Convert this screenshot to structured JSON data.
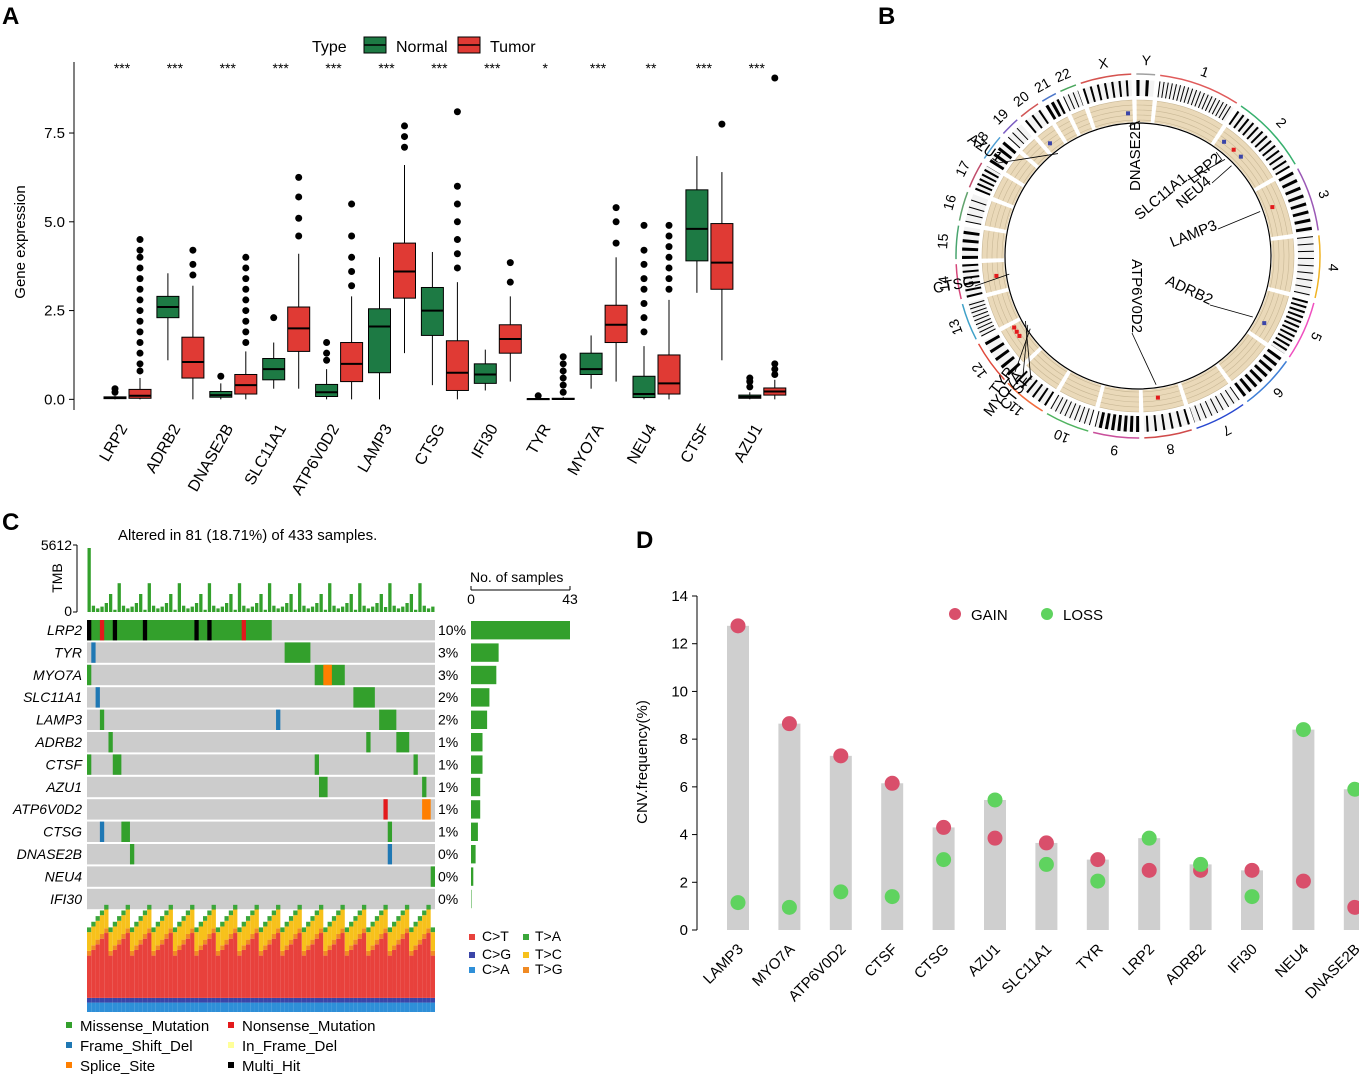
{
  "colors": {
    "normal": "#1d7a44",
    "tumor": "#e03a34",
    "missense": "#33a02c",
    "nonsense": "#e31a1c",
    "frameshift": "#1f78b4",
    "inframe": "#ffff99",
    "splice": "#ff7f00",
    "multihit": "#000000",
    "oncoBg": "#cccccc",
    "gain": "#d94f6b",
    "loss": "#5fd35f",
    "cnvBar": "#cfcfcf",
    "CtoT": "#e8413c",
    "CtoG": "#3b45a8",
    "CtoA": "#2e8fd8",
    "TtoA": "#3aa63a",
    "TtoC": "#f7c11b",
    "TtoG": "#f08a24",
    "circosBeige": "#ead9b9"
  },
  "panels": {
    "A": {
      "label": "A"
    },
    "B": {
      "label": "B"
    },
    "C": {
      "label": "C"
    },
    "D": {
      "label": "D"
    }
  },
  "chart_data": [
    {
      "id": "A",
      "type": "box",
      "title": "",
      "xlabel": "",
      "ylabel": "Gene expression",
      "ylim": [
        -0.3,
        9.5
      ],
      "yticks": [
        "0.0",
        "2.5",
        "5.0",
        "7.5"
      ],
      "legend": {
        "title": "Type",
        "entries": [
          "Normal",
          "Tumor"
        ],
        "position": "top-center"
      },
      "categories": [
        "LRP2",
        "ADRB2",
        "DNASE2B",
        "SLC11A1",
        "ATP6V0D2",
        "LAMP3",
        "CTSG",
        "IFI30",
        "TYR",
        "MYO7A",
        "NEU4",
        "CTSF",
        "AZU1"
      ],
      "significance": [
        "***",
        "***",
        "***",
        "***",
        "***",
        "***",
        "***",
        "***",
        "*",
        "***",
        "**",
        "***",
        "***"
      ],
      "series": [
        {
          "name": "Normal",
          "boxes": [
            {
              "min": 0.0,
              "q1": 0.02,
              "median": 0.04,
              "q3": 0.07,
              "max": 0.1,
              "outliers": [
                0.2,
                0.3
              ]
            },
            {
              "min": 1.1,
              "q1": 2.3,
              "median": 2.6,
              "q3": 2.9,
              "max": 3.55,
              "outliers": []
            },
            {
              "min": 0.0,
              "q1": 0.06,
              "median": 0.12,
              "q3": 0.22,
              "max": 0.45,
              "outliers": [
                0.65
              ]
            },
            {
              "min": 0.3,
              "q1": 0.55,
              "median": 0.85,
              "q3": 1.15,
              "max": 1.6,
              "outliers": [
                2.3
              ]
            },
            {
              "min": 0.0,
              "q1": 0.08,
              "median": 0.2,
              "q3": 0.42,
              "max": 0.85,
              "outliers": [
                1.1,
                1.3,
                1.6
              ]
            },
            {
              "min": 0.0,
              "q1": 0.75,
              "median": 2.05,
              "q3": 2.55,
              "max": 4.0,
              "outliers": []
            },
            {
              "min": 0.4,
              "q1": 1.8,
              "median": 2.5,
              "q3": 3.15,
              "max": 4.15,
              "outliers": []
            },
            {
              "min": 0.25,
              "q1": 0.45,
              "median": 0.7,
              "q3": 1.0,
              "max": 1.4,
              "outliers": []
            },
            {
              "min": 0.0,
              "q1": 0.0,
              "median": 0.01,
              "q3": 0.02,
              "max": 0.05,
              "outliers": [
                0.1
              ]
            },
            {
              "min": 0.3,
              "q1": 0.7,
              "median": 0.85,
              "q3": 1.3,
              "max": 1.8,
              "outliers": []
            },
            {
              "min": 0.0,
              "q1": 0.05,
              "median": 0.15,
              "q3": 0.65,
              "max": 1.5,
              "outliers": [
                1.9,
                2.3,
                2.7,
                3.1,
                3.4,
                3.8,
                4.2,
                4.9
              ]
            },
            {
              "min": 3.0,
              "q1": 3.9,
              "median": 4.8,
              "q3": 5.9,
              "max": 6.85,
              "outliers": []
            },
            {
              "min": 0.0,
              "q1": 0.03,
              "median": 0.07,
              "q3": 0.12,
              "max": 0.2,
              "outliers": [
                0.35,
                0.5,
                0.6
              ]
            }
          ]
        },
        {
          "name": "Tumor",
          "boxes": [
            {
              "min": 0.0,
              "q1": 0.03,
              "median": 0.1,
              "q3": 0.28,
              "max": 0.6,
              "outliers": [
                0.8,
                1.0,
                1.3,
                1.6,
                1.9,
                2.2,
                2.5,
                2.8,
                3.1,
                3.4,
                3.7,
                4.0,
                4.2,
                4.5
              ]
            },
            {
              "min": 0.0,
              "q1": 0.6,
              "median": 1.05,
              "q3": 1.75,
              "max": 3.2,
              "outliers": [
                3.5,
                3.8,
                4.2
              ]
            },
            {
              "min": 0.0,
              "q1": 0.15,
              "median": 0.4,
              "q3": 0.7,
              "max": 1.35,
              "outliers": [
                1.6,
                1.9,
                2.2,
                2.5,
                2.8,
                3.1,
                3.4,
                3.7,
                4.0
              ]
            },
            {
              "min": 0.3,
              "q1": 1.35,
              "median": 2.0,
              "q3": 2.6,
              "max": 4.1,
              "outliers": [
                4.6,
                5.1,
                5.7,
                6.25
              ]
            },
            {
              "min": 0.0,
              "q1": 0.5,
              "median": 1.0,
              "q3": 1.6,
              "max": 2.9,
              "outliers": [
                3.2,
                3.6,
                4.0,
                4.6,
                5.5
              ]
            },
            {
              "min": 1.3,
              "q1": 2.85,
              "median": 3.6,
              "q3": 4.4,
              "max": 6.6,
              "outliers": [
                7.1,
                7.4,
                7.7
              ]
            },
            {
              "min": 0.0,
              "q1": 0.25,
              "median": 0.75,
              "q3": 1.65,
              "max": 3.3,
              "outliers": [
                3.7,
                4.1,
                4.5,
                5.0,
                5.5,
                6.0,
                8.1
              ]
            },
            {
              "min": 0.5,
              "q1": 1.3,
              "median": 1.7,
              "q3": 2.1,
              "max": 2.9,
              "outliers": [
                3.3,
                3.85
              ]
            },
            {
              "min": 0.0,
              "q1": 0.0,
              "median": 0.01,
              "q3": 0.03,
              "max": 0.07,
              "outliers": [
                0.2,
                0.4,
                0.6,
                0.8,
                1.0,
                1.2
              ]
            },
            {
              "min": 0.5,
              "q1": 1.6,
              "median": 2.1,
              "q3": 2.65,
              "max": 4.0,
              "outliers": [
                4.4,
                5.0,
                5.4
              ]
            },
            {
              "min": 0.0,
              "q1": 0.15,
              "median": 0.45,
              "q3": 1.25,
              "max": 2.8,
              "outliers": [
                3.1,
                3.4,
                3.7,
                4.0,
                4.3,
                4.6,
                4.9
              ]
            },
            {
              "min": 1.1,
              "q1": 3.1,
              "median": 3.85,
              "q3": 4.95,
              "max": 6.4,
              "outliers": [
                7.75
              ]
            },
            {
              "min": 0.0,
              "q1": 0.12,
              "median": 0.22,
              "q3": 0.32,
              "max": 0.55,
              "outliers": [
                0.7,
                0.85,
                1.0,
                9.05
              ]
            }
          ]
        }
      ]
    },
    {
      "id": "B",
      "type": "circos",
      "chromosomes": [
        "1",
        "2",
        "3",
        "4",
        "5",
        "6",
        "7",
        "8",
        "9",
        "10",
        "11",
        "12",
        "13",
        "14",
        "15",
        "16",
        "17",
        "18",
        "19",
        "20",
        "21",
        "22",
        "X",
        "Y"
      ],
      "genes": [
        {
          "name": "DNASE2B",
          "chr": "1"
        },
        {
          "name": "LRP2",
          "chr": "2"
        },
        {
          "name": "SLC11A1",
          "chr": "2"
        },
        {
          "name": "NEU4",
          "chr": "2"
        },
        {
          "name": "LAMP3",
          "chr": "3"
        },
        {
          "name": "ADRB2",
          "chr": "5"
        },
        {
          "name": "ATP6V0D2",
          "chr": "8"
        },
        {
          "name": "TYR",
          "chr": "11"
        },
        {
          "name": "MYO7A",
          "chr": "11"
        },
        {
          "name": "CTSF",
          "chr": "11"
        },
        {
          "name": "CTSG",
          "chr": "14"
        },
        {
          "name": "AZU1",
          "chr": "19"
        }
      ]
    },
    {
      "id": "C",
      "type": "oncoplot",
      "title": "Altered in 81 (18.71%) of 433 samples.",
      "tmb_label": "TMB",
      "tmb_max": "5612",
      "tmb_min": "0",
      "side_title": "No. of samples",
      "side_min": "0",
      "side_max": "43",
      "genes": [
        "LRP2",
        "TYR",
        "MYO7A",
        "SLC11A1",
        "LAMP3",
        "ADRB2",
        "CTSF",
        "AZU1",
        "ATP6V0D2",
        "CTSG",
        "DNASE2B",
        "NEU4",
        "IFI30"
      ],
      "percents": [
        "10%",
        "3%",
        "3%",
        "2%",
        "2%",
        "1%",
        "1%",
        "1%",
        "1%",
        "1%",
        "0%",
        "0%",
        "0%"
      ],
      "counts": [
        43,
        12,
        11,
        8,
        7,
        5,
        5,
        4,
        4,
        3,
        2,
        1,
        0
      ],
      "titv_legend": [
        "C>T",
        "C>G",
        "C>A",
        "T>A",
        "T>C",
        "T>G"
      ],
      "variant_legend": [
        "Missense_Mutation",
        "Frame_Shift_Del",
        "Splice_Site",
        "Nonsense_Mutation",
        "In_Frame_Del",
        "Multi_Hit"
      ]
    },
    {
      "id": "D",
      "type": "dot-bar",
      "ylabel": "CNV.frequency(%)",
      "ylim": [
        0,
        14
      ],
      "yticks": [
        "0",
        "2",
        "4",
        "6",
        "8",
        "10",
        "12",
        "14"
      ],
      "legend": {
        "entries": [
          "GAIN",
          "LOSS"
        ],
        "position": "top-center"
      },
      "categories": [
        "LAMP3",
        "MYO7A",
        "ATP6V0D2",
        "CTSF",
        "CTSG",
        "AZU1",
        "SLC11A1",
        "TYR",
        "LRP2",
        "ADRB2",
        "IFI30",
        "NEU4",
        "DNASE2B"
      ],
      "series": [
        {
          "name": "GAIN",
          "values": [
            12.75,
            8.65,
            7.3,
            6.15,
            4.3,
            3.85,
            3.65,
            2.95,
            2.5,
            2.5,
            2.5,
            2.05,
            0.95
          ]
        },
        {
          "name": "LOSS",
          "values": [
            1.15,
            0.95,
            1.6,
            1.4,
            2.95,
            5.45,
            2.75,
            2.05,
            3.85,
            2.75,
            1.4,
            8.4,
            5.9
          ]
        }
      ]
    }
  ]
}
